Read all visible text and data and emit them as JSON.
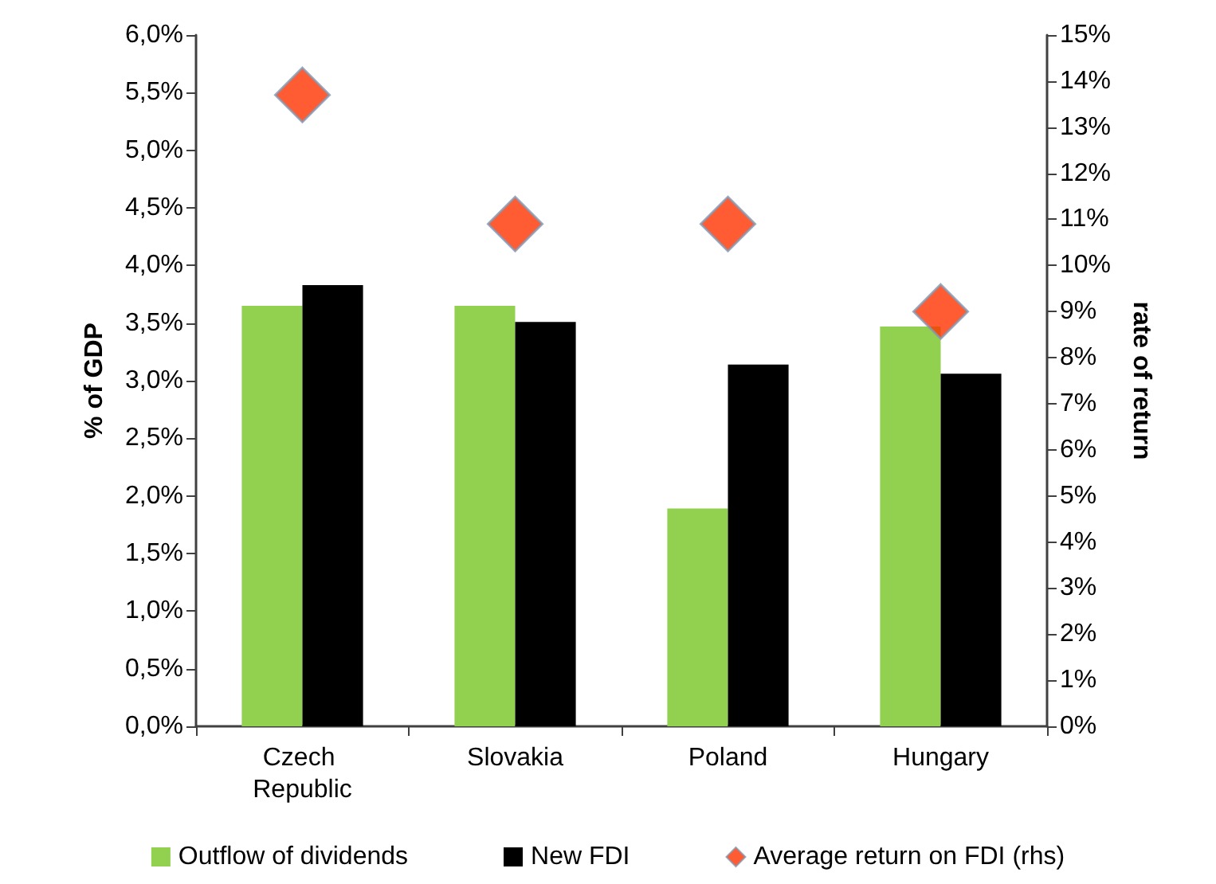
{
  "chart_data": {
    "type": "bar",
    "ylabel": "% of GDP",
    "y2label": "rate of return",
    "categories": [
      "Czech Republic",
      "Slovakia",
      "Poland",
      "Hungary"
    ],
    "series": [
      {
        "name": "Outflow of dividends",
        "color": "#92d050",
        "values": [
          3.65,
          3.65,
          1.89,
          3.47
        ]
      },
      {
        "name": "New FDI",
        "color": "#000000",
        "values": [
          3.83,
          3.51,
          3.14,
          3.06
        ]
      },
      {
        "name": "Average return on FDI (rhs)",
        "type": "scatter",
        "axis": "y2",
        "marker": "diamond",
        "color": "#ff3300",
        "values": [
          13.7,
          10.9,
          10.9,
          9.0
        ]
      }
    ],
    "ylim": [
      0,
      6
    ],
    "yticks": [
      {
        "value": 0,
        "label": "0,0%"
      },
      {
        "value": 0.5,
        "label": "0,5%"
      },
      {
        "value": 1,
        "label": "1,0%"
      },
      {
        "value": 1.5,
        "label": "1,5%"
      },
      {
        "value": 2,
        "label": "2,0%"
      },
      {
        "value": 2.5,
        "label": "2,5%"
      },
      {
        "value": 3,
        "label": "3,0%"
      },
      {
        "value": 3.5,
        "label": "3,5%"
      },
      {
        "value": 4,
        "label": "4,0%"
      },
      {
        "value": 4.5,
        "label": "4,5%"
      },
      {
        "value": 5,
        "label": "5,0%"
      },
      {
        "value": 5.5,
        "label": "5,5%"
      },
      {
        "value": 6,
        "label": "6,0%"
      }
    ],
    "y2lim": [
      0,
      15
    ],
    "y2ticks": [
      {
        "value": 0,
        "label": "0%"
      },
      {
        "value": 1,
        "label": "1%"
      },
      {
        "value": 2,
        "label": "2%"
      },
      {
        "value": 3,
        "label": "3%"
      },
      {
        "value": 4,
        "label": "4%"
      },
      {
        "value": 5,
        "label": "5%"
      },
      {
        "value": 6,
        "label": "6%"
      },
      {
        "value": 7,
        "label": "7%"
      },
      {
        "value": 8,
        "label": "8%"
      },
      {
        "value": 9,
        "label": "9%"
      },
      {
        "value": 10,
        "label": "10%"
      },
      {
        "value": 11,
        "label": "11%"
      },
      {
        "value": 12,
        "label": "12%"
      },
      {
        "value": 13,
        "label": "13%"
      },
      {
        "value": 14,
        "label": "14%"
      },
      {
        "value": 15,
        "label": "15%"
      }
    ],
    "grid": false,
    "legend": "bottom"
  }
}
